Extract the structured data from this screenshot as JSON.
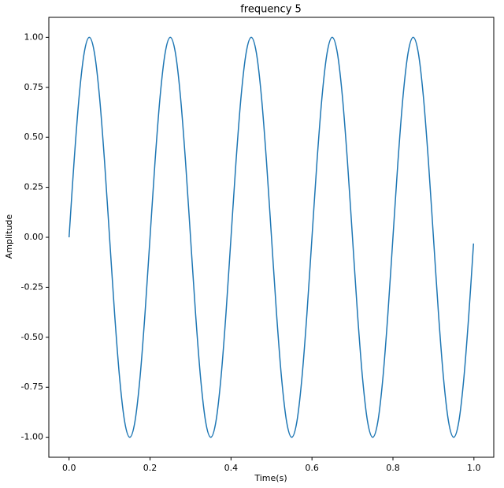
{
  "chart_data": {
    "type": "line",
    "title": "frequency 5",
    "xlabel": "Time(s)",
    "ylabel": "Amplitude",
    "x": [
      0,
      0.0125,
      0.025,
      0.0375,
      0.05,
      0.0625,
      0.075,
      0.0875,
      0.1,
      0.1125,
      0.125,
      0.1375,
      0.15,
      0.1625,
      0.175,
      0.1875,
      0.2,
      0.2125,
      0.225,
      0.2375,
      0.25,
      0.2625,
      0.275,
      0.2875,
      0.3,
      0.3125,
      0.325,
      0.3375,
      0.35,
      0.3625,
      0.375,
      0.3875,
      0.4,
      0.4125,
      0.425,
      0.4375,
      0.45,
      0.4625,
      0.475,
      0.4875,
      0.5,
      0.5125,
      0.525,
      0.5375,
      0.55,
      0.5625,
      0.575,
      0.5875,
      0.6,
      0.6125,
      0.625,
      0.6375,
      0.65,
      0.6625,
      0.675,
      0.6875,
      0.7,
      0.7125,
      0.725,
      0.7375,
      0.75,
      0.7625,
      0.775,
      0.7875,
      0.8,
      0.8125,
      0.825,
      0.8375,
      0.85,
      0.8625,
      0.875,
      0.8875,
      0.9,
      0.9125,
      0.925,
      0.9375,
      0.95,
      0.9625,
      0.975,
      0.9875,
      0.999
    ],
    "series": [
      {
        "color": "#1f77b4",
        "values": [
          0,
          0.383,
          0.707,
          0.924,
          1,
          0.924,
          0.707,
          0.383,
          0,
          -0.383,
          -0.707,
          -0.924,
          -1,
          -0.924,
          -0.707,
          -0.383,
          0,
          0.383,
          0.707,
          0.924,
          1,
          0.924,
          0.707,
          0.383,
          0,
          -0.383,
          -0.707,
          -0.924,
          -1,
          -0.924,
          -0.707,
          -0.383,
          0,
          0.383,
          0.707,
          0.924,
          1,
          0.924,
          0.707,
          0.383,
          0,
          -0.383,
          -0.707,
          -0.924,
          -1,
          -0.924,
          -0.707,
          -0.383,
          0,
          0.383,
          0.707,
          0.924,
          1,
          0.924,
          0.707,
          0.383,
          0,
          -0.383,
          -0.707,
          -0.924,
          -1,
          -0.924,
          -0.707,
          -0.383,
          0,
          0.383,
          0.707,
          0.924,
          1,
          0.924,
          0.707,
          0.383,
          0,
          -0.383,
          -0.707,
          -0.924,
          -1,
          -0.924,
          -0.707,
          -0.383,
          -0.031
        ]
      }
    ],
    "xlim": [
      -0.05,
      1.049
    ],
    "ylim": [
      -1.1,
      1.1
    ],
    "xticks": [
      {
        "value": 0,
        "label": "0.0"
      },
      0.2,
      0.4,
      0.6,
      0.8,
      {
        "value": 1,
        "label": "1.0"
      }
    ],
    "yticks": [
      {
        "value": -1,
        "label": "-1.00"
      },
      -0.75,
      {
        "value": -0.5,
        "label": "-0.50"
      },
      -0.25,
      {
        "value": 0,
        "label": "0.00"
      },
      0.25,
      {
        "value": 0.5,
        "label": "0.50"
      },
      0.75,
      {
        "value": 1,
        "label": "1.00"
      }
    ],
    "grid": false
  }
}
